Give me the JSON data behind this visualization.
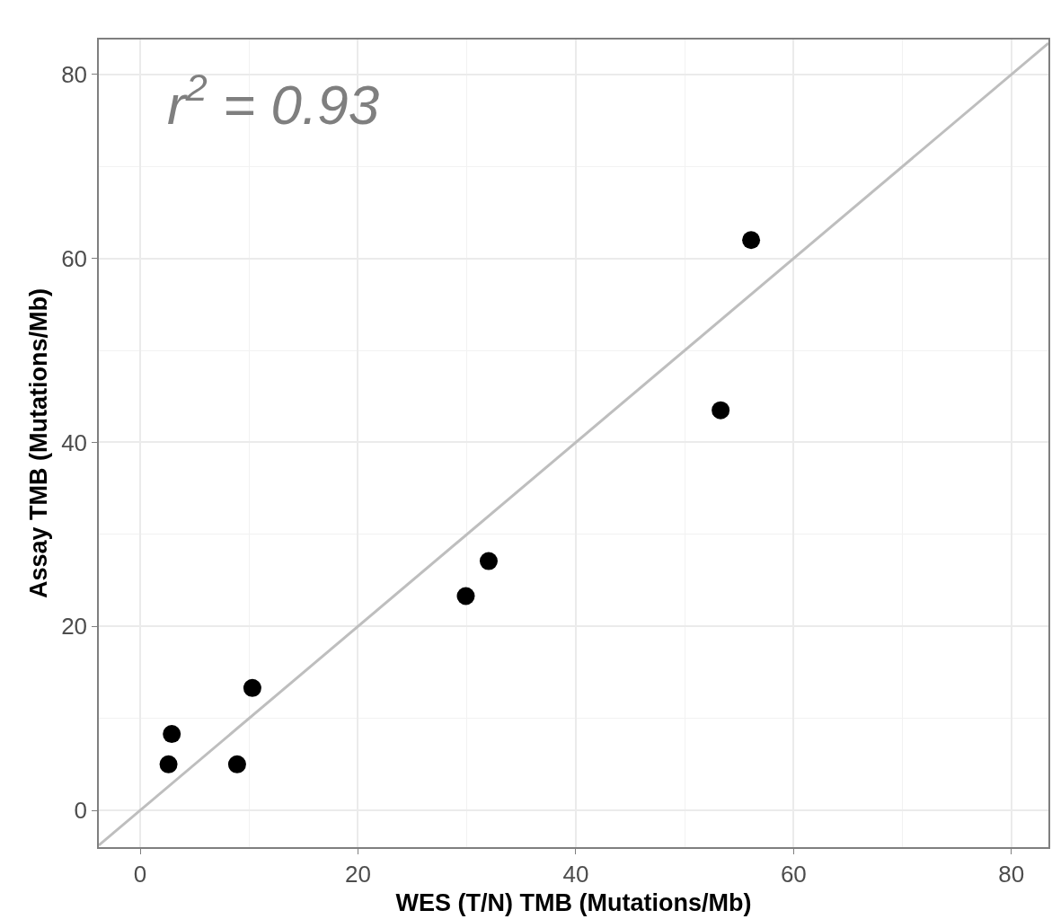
{
  "chart_data": {
    "type": "scatter",
    "xlabel": "WES (T/N) TMB (Mutations/Mb)",
    "ylabel": "Assay TMB (Mutations/Mb)",
    "annotations": [
      "r$^{2}$ = 0.93"
    ],
    "series": [
      {
        "color": "#000000",
        "x": [
          2.6,
          2.9,
          8.9,
          10.3,
          29.9,
          32.0,
          53.3,
          56.1
        ],
        "values": [
          5.0,
          8.3,
          5.0,
          13.3,
          23.3,
          27.1,
          43.5,
          62.0
        ],
        "marker": "circle"
      },
      {
        "type": "line",
        "color": "#bebebe",
        "x": [
          -3.8,
          83.4
        ],
        "values": [
          -3.8,
          83.4
        ],
        "line_style": "solid",
        "marker": "none"
      }
    ],
    "xlim": [
      -3.8,
      83.4
    ],
    "ylim": [
      -4.0,
      83.8
    ],
    "xticks": [
      0,
      20,
      40,
      60,
      80
    ],
    "yticks": [
      0,
      20,
      40,
      60,
      80
    ],
    "grid": true
  }
}
